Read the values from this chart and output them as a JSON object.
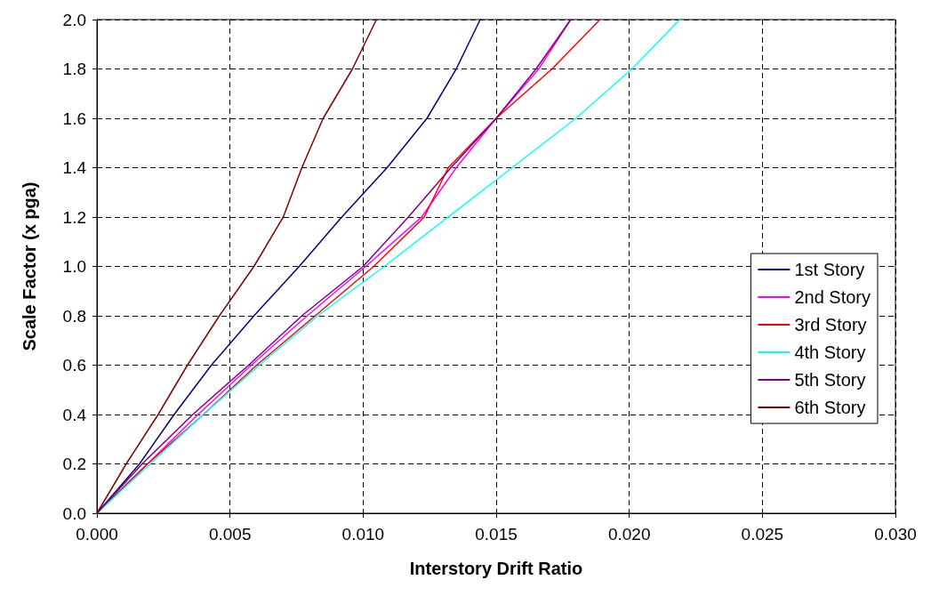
{
  "chart_data": {
    "type": "line",
    "xlabel": "Interstory Drift Ratio",
    "ylabel": "Scale Factor (x pga)",
    "series": [
      {
        "name": "1st Story",
        "color": "#000080",
        "x": [
          0,
          0.0016,
          0.0029,
          0.0043,
          0.0059,
          0.0076,
          0.0092,
          0.0109,
          0.0124,
          0.0135,
          0.0144
        ],
        "values": [
          0,
          0.2,
          0.4,
          0.6,
          0.8,
          1.0,
          1.2,
          1.4,
          1.6,
          1.8,
          2.0
        ]
      },
      {
        "name": "2nd Story",
        "color": "#ff00ff",
        "x": [
          0,
          0.0019,
          0.0038,
          0.0058,
          0.0079,
          0.0101,
          0.0122,
          0.0135,
          0.015,
          0.0166,
          0.0178
        ],
        "values": [
          0,
          0.2,
          0.4,
          0.6,
          0.8,
          1.0,
          1.2,
          1.4,
          1.6,
          1.8,
          2.0
        ]
      },
      {
        "name": "3rd Story",
        "color": "#ff0000",
        "x": [
          0,
          0.0019,
          0.004,
          0.006,
          0.0082,
          0.0104,
          0.0123,
          0.0132,
          0.015,
          0.0171,
          0.0189
        ],
        "values": [
          0,
          0.2,
          0.4,
          0.6,
          0.8,
          1.0,
          1.2,
          1.4,
          1.6,
          1.8,
          2.0
        ]
      },
      {
        "name": "4th Story",
        "color": "#00ffff",
        "x": [
          0,
          0.002,
          0.004,
          0.0061,
          0.0083,
          0.0108,
          0.0132,
          0.0156,
          0.018,
          0.0201,
          0.0219
        ],
        "values": [
          0,
          0.2,
          0.4,
          0.6,
          0.8,
          1.0,
          1.2,
          1.4,
          1.6,
          1.8,
          2.0
        ]
      },
      {
        "name": "5th Story",
        "color": "#800080",
        "x": [
          0,
          0.0017,
          0.0036,
          0.0057,
          0.0077,
          0.01,
          0.0117,
          0.0133,
          0.015,
          0.0165,
          0.0178
        ],
        "values": [
          0,
          0.2,
          0.4,
          0.6,
          0.8,
          1.0,
          1.2,
          1.4,
          1.6,
          1.8,
          2.0
        ]
      },
      {
        "name": "6th Story",
        "color": "#800000",
        "x": [
          0,
          0.0011,
          0.0023,
          0.0034,
          0.0046,
          0.0059,
          0.007,
          0.0077,
          0.0085,
          0.0096,
          0.0105
        ],
        "values": [
          0,
          0.2,
          0.4,
          0.6,
          0.8,
          1.0,
          1.2,
          1.4,
          1.6,
          1.8,
          2.0
        ]
      }
    ],
    "xlim": [
      0,
      0.03
    ],
    "xticks": [
      {
        "value": 0,
        "label": "0.000"
      },
      {
        "value": 0.005,
        "label": "0.005"
      },
      {
        "value": 0.01,
        "label": "0.010"
      },
      {
        "value": 0.015,
        "label": "0.015"
      },
      {
        "value": 0.02,
        "label": "0.020"
      },
      {
        "value": 0.025,
        "label": "0.025"
      },
      {
        "value": 0.03,
        "label": "0.030"
      }
    ],
    "ylim": [
      0,
      2
    ],
    "yticks": [
      {
        "value": 0,
        "label": "0.0"
      },
      {
        "value": 0.2,
        "label": "0.2"
      },
      {
        "value": 0.4,
        "label": "0.4"
      },
      {
        "value": 0.6,
        "label": "0.6"
      },
      {
        "value": 0.8,
        "label": "0.8"
      },
      {
        "value": 1.0,
        "label": "1.0"
      },
      {
        "value": 1.2,
        "label": "1.2"
      },
      {
        "value": 1.4,
        "label": "1.4"
      },
      {
        "value": 1.6,
        "label": "1.6"
      },
      {
        "value": 1.8,
        "label": "1.8"
      },
      {
        "value": 2.0,
        "label": "2.0"
      }
    ],
    "grid": true,
    "legend": "right",
    "marker": "none",
    "line_style": "solid"
  }
}
